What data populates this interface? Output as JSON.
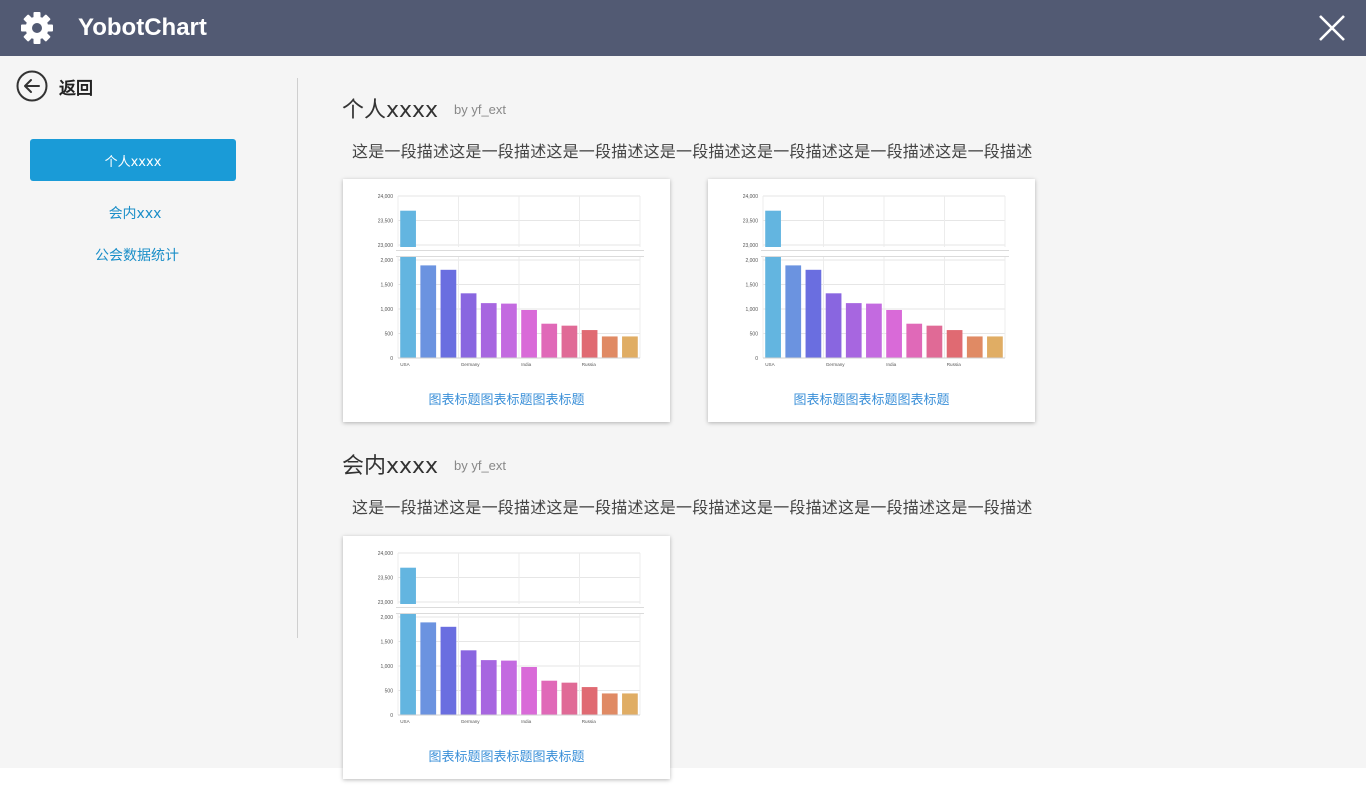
{
  "app": {
    "title": "YobotChart"
  },
  "sidebar": {
    "back_label": "返回",
    "items": [
      {
        "label": "个人xxxx",
        "active": true
      },
      {
        "label": "会内xxx",
        "active": false
      },
      {
        "label": "公会数据统计",
        "active": false
      }
    ]
  },
  "colors": {
    "titlebar": "#525a73",
    "accent": "#1a9bd7",
    "link": "#3a8fd8"
  },
  "sections": [
    {
      "title": "个人xxxx",
      "by": "by yf_ext",
      "description": "这是一段描述这是一段描述这是一段描述这是一段描述这是一段描述这是一段描述这是一段描述",
      "cards": [
        {
          "caption": "图表标题图表标题图表标题"
        },
        {
          "caption": "图表标题图表标题图表标题"
        }
      ]
    },
    {
      "title": "会内xxxx",
      "by": "by yf_ext",
      "description": "这是一段描述这是一段描述这是一段描述这是一段描述这是一段描述这是一段描述这是一段描述",
      "cards": [
        {
          "caption": "图表标题图表标题图表标题"
        }
      ]
    }
  ],
  "chart_data": {
    "type": "bar",
    "axis_break": {
      "lower": [
        0,
        2000
      ],
      "upper": [
        23000,
        24000
      ]
    },
    "yticks_lower": [
      "0",
      "500",
      "1,000",
      "1,500",
      "2,000"
    ],
    "yticks_upper": [
      "23,000",
      "23,500",
      "24,000"
    ],
    "xtick_labels": [
      "USA",
      "Germany",
      "India",
      "Russia"
    ],
    "xtick_bar_index": [
      0,
      3,
      6,
      9
    ],
    "values": [
      23700,
      1890,
      1800,
      1320,
      1120,
      1110,
      980,
      700,
      660,
      570,
      440,
      440
    ],
    "colors": [
      "#63b5e0",
      "#6b93e0",
      "#6a6ee0",
      "#8966e0",
      "#a766e0",
      "#c36ae0",
      "#d96ad8",
      "#e069b8",
      "#e06a96",
      "#e06a72",
      "#e08a64",
      "#e0ad64"
    ]
  }
}
